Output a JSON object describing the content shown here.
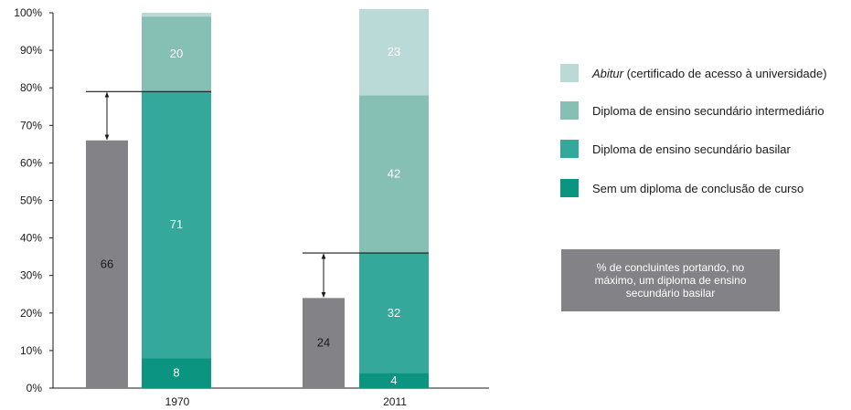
{
  "chart_data": {
    "type": "bar",
    "categories": [
      "1970",
      "2011"
    ],
    "ylim": [
      0,
      100
    ],
    "yticks": [
      "0%",
      "10%",
      "20%",
      "30%",
      "40%",
      "50%",
      "60%",
      "70%",
      "80%",
      "90%",
      "100%"
    ],
    "grid": false,
    "reference_series": {
      "values": [
        66,
        24
      ],
      "color": "#838287"
    },
    "stacked_series": [
      {
        "name": "Sem um diploma de conclusão de curso",
        "values": [
          8,
          4
        ],
        "color": "#0b9580"
      },
      {
        "name": "Diploma de ensino secundário basilar",
        "values": [
          71,
          32
        ],
        "color": "#34a89b"
      },
      {
        "name": "Diploma de ensino secundário intermediário",
        "values": [
          20,
          42
        ],
        "color": "#86bfb4"
      },
      {
        "name": "Abitur (certificado de acesso à universidade)",
        "values": [
          1,
          23
        ],
        "color": "#b9dad6"
      }
    ],
    "data_labels": [
      [
        "8",
        "71",
        "20",
        ""
      ],
      [
        "4",
        "32",
        "42",
        "23"
      ]
    ],
    "gap_markers": [
      {
        "from": 66,
        "to": 79
      },
      {
        "from": 24,
        "to": 36
      }
    ],
    "legend_position": "right",
    "legend": [
      {
        "italic": "Abitur",
        "rest": " (certificado de acesso à universidade)",
        "color": "#b9dad6"
      },
      {
        "italic": "",
        "rest": "Diploma de ensino secundário intermediário",
        "color": "#86bfb4"
      },
      {
        "italic": "",
        "rest": "Diploma de ensino secundário basilar",
        "color": "#34a89b"
      },
      {
        "italic": "",
        "rest": "Sem um diploma de conclusão de curso",
        "color": "#0b9580"
      }
    ],
    "note": "% de concluintes portando, no máximo, um diploma de ensino secundário basilar"
  }
}
